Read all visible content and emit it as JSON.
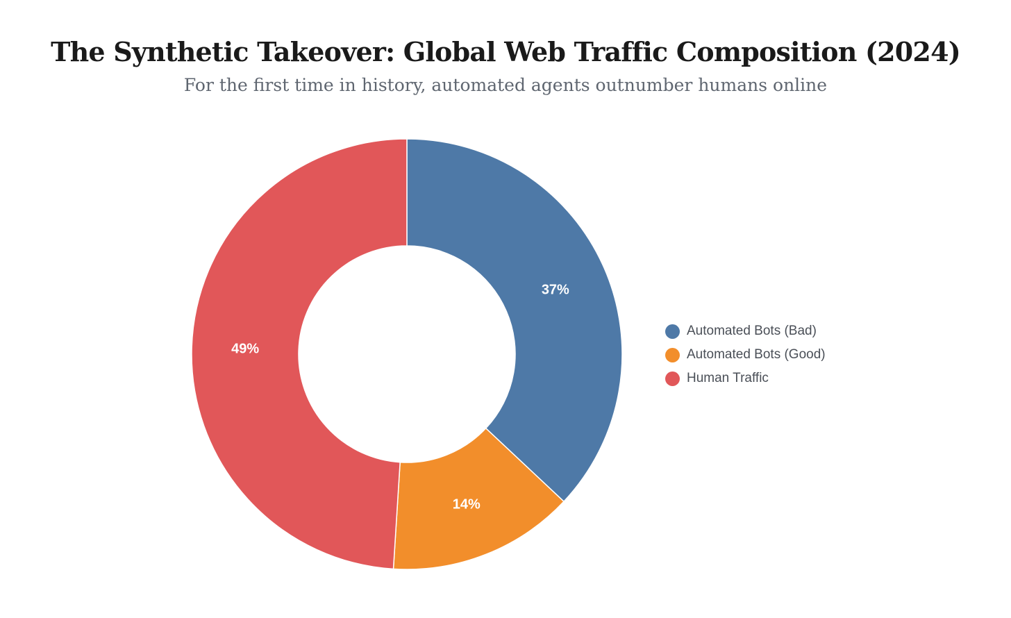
{
  "chart_data": {
    "type": "pie",
    "title": "The Synthetic Takeover: Global Web Traffic Composition (2024)",
    "subtitle": "For the first time in history, automated agents outnumber humans online",
    "donut": true,
    "unit": "%",
    "legend_position": "right",
    "slices": [
      {
        "label": "Automated Bots (Bad)",
        "value": 37,
        "display": "37%",
        "color": "#4e79a7"
      },
      {
        "label": "Automated Bots (Good)",
        "value": 14,
        "display": "14%",
        "color": "#f28e2b"
      },
      {
        "label": "Human Traffic",
        "value": 49,
        "display": "49%",
        "color": "#e15759"
      }
    ]
  }
}
